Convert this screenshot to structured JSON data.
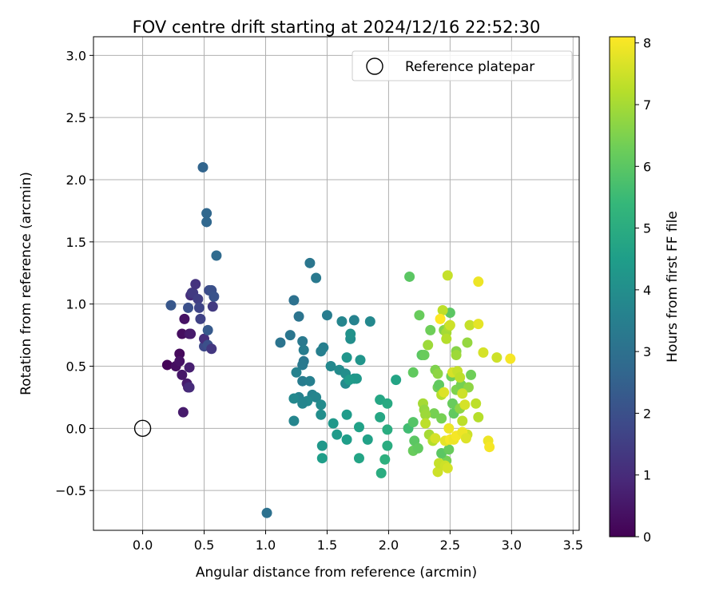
{
  "chart_data": {
    "type": "scatter",
    "title": "FOV centre drift starting at 2024/12/16 22:52:30",
    "xlabel": "Angular distance from reference (arcmin)",
    "ylabel": "Rotation from reference (arcmin)",
    "xlim": [
      -0.4,
      3.55
    ],
    "ylim": [
      -0.82,
      3.15
    ],
    "xticks": [
      "0.0",
      "0.5",
      "1.0",
      "1.5",
      "2.0",
      "2.5",
      "3.0",
      "3.5"
    ],
    "xtick_values": [
      0,
      0.5,
      1,
      1.5,
      2,
      2.5,
      3,
      3.5
    ],
    "yticks": [
      "−0.5",
      "0.0",
      "0.5",
      "1.0",
      "1.5",
      "2.0",
      "2.5",
      "3.0"
    ],
    "ytick_values": [
      -0.5,
      0,
      0.5,
      1,
      1.5,
      2,
      2.5,
      3
    ],
    "grid": true,
    "legend": {
      "position": "top-right",
      "entries": [
        "Reference platepar"
      ]
    },
    "reference_point": {
      "name": "Reference platepar",
      "x": 0.0,
      "y": 0.0,
      "marker": "open-circle"
    },
    "colorbar": {
      "label": "Hours from first FF file",
      "range": [
        0,
        8.1
      ],
      "ticks": [
        "0",
        "1",
        "2",
        "3",
        "4",
        "5",
        "6",
        "7",
        "8"
      ],
      "tick_values": [
        0,
        1,
        2,
        3,
        4,
        5,
        6,
        7,
        8
      ],
      "colormap": "viridis",
      "stops": [
        "#440154",
        "#482878",
        "#3e4989",
        "#31688e",
        "#26828e",
        "#1f9e89",
        "#35b779",
        "#6ece58",
        "#b5de2b",
        "#fde725"
      ]
    },
    "points": [
      [
        0.2,
        0.51,
        0.1
      ],
      [
        0.27,
        0.5,
        0.3
      ],
      [
        0.3,
        0.6,
        0.2
      ],
      [
        0.3,
        0.54,
        0.4
      ],
      [
        0.32,
        0.43,
        0.5
      ],
      [
        0.33,
        0.13,
        0.6
      ],
      [
        0.32,
        0.76,
        0.3
      ],
      [
        0.34,
        0.88,
        0.4
      ],
      [
        0.36,
        0.36,
        0.6
      ],
      [
        0.37,
        0.33,
        0.8
      ],
      [
        0.38,
        0.33,
        1.0
      ],
      [
        0.38,
        0.49,
        0.7
      ],
      [
        0.38,
        0.76,
        0.5
      ],
      [
        0.39,
        0.76,
        0.6
      ],
      [
        0.39,
        1.07,
        1.1
      ],
      [
        0.4,
        1.09,
        1.3
      ],
      [
        0.41,
        1.09,
        1.4
      ],
      [
        0.43,
        1.16,
        1.2
      ],
      [
        0.45,
        1.04,
        1.5
      ],
      [
        0.46,
        0.97,
        1.7
      ],
      [
        0.47,
        0.88,
        1.6
      ],
      [
        0.5,
        0.66,
        1.8
      ],
      [
        0.5,
        0.72,
        1.1
      ],
      [
        0.53,
        0.67,
        2.0
      ],
      [
        0.56,
        0.64,
        1.3
      ],
      [
        0.54,
        1.11,
        1.9
      ],
      [
        0.56,
        1.11,
        2.0
      ],
      [
        0.57,
        0.98,
        1.4
      ],
      [
        0.58,
        1.06,
        2.1
      ],
      [
        0.37,
        0.97,
        2.0
      ],
      [
        0.23,
        0.99,
        2.2
      ],
      [
        0.53,
        0.79,
        2.3
      ],
      [
        0.49,
        2.1,
        2.6
      ],
      [
        0.52,
        1.73,
        2.7
      ],
      [
        0.52,
        1.66,
        2.7
      ],
      [
        0.6,
        1.39,
        2.8
      ],
      [
        1.01,
        -0.68,
        3.0
      ],
      [
        1.12,
        0.69,
        3.1
      ],
      [
        1.2,
        0.75,
        3.2
      ],
      [
        1.23,
        1.03,
        3.0
      ],
      [
        1.27,
        0.9,
        3.1
      ],
      [
        1.3,
        0.7,
        3.3
      ],
      [
        1.31,
        0.63,
        3.4
      ],
      [
        1.31,
        0.54,
        3.2
      ],
      [
        1.3,
        0.51,
        3.3
      ],
      [
        1.36,
        1.33,
        3.2
      ],
      [
        1.41,
        1.21,
        3.3
      ],
      [
        1.5,
        0.91,
        3.4
      ],
      [
        1.45,
        0.62,
        3.5
      ],
      [
        1.47,
        0.65,
        3.5
      ],
      [
        1.25,
        0.45,
        3.6
      ],
      [
        1.3,
        0.38,
        3.4
      ],
      [
        1.36,
        0.38,
        3.5
      ],
      [
        1.38,
        0.27,
        3.6
      ],
      [
        1.41,
        0.25,
        3.7
      ],
      [
        1.34,
        0.22,
        3.8
      ],
      [
        1.27,
        0.25,
        3.6
      ],
      [
        1.3,
        0.2,
        3.7
      ],
      [
        1.23,
        0.06,
        3.7
      ],
      [
        1.23,
        0.24,
        3.8
      ],
      [
        1.45,
        0.19,
        3.9
      ],
      [
        1.45,
        0.11,
        4.0
      ],
      [
        1.53,
        0.5,
        3.8
      ],
      [
        1.62,
        0.86,
        3.7
      ],
      [
        1.72,
        0.87,
        3.6
      ],
      [
        1.85,
        0.86,
        3.8
      ],
      [
        1.6,
        0.47,
        3.9
      ],
      [
        1.65,
        0.44,
        4.0
      ],
      [
        1.65,
        0.36,
        3.9
      ],
      [
        1.66,
        0.57,
        4.2
      ],
      [
        1.69,
        0.72,
        4.0
      ],
      [
        1.69,
        0.76,
        4.1
      ],
      [
        1.72,
        0.4,
        4.1
      ],
      [
        1.74,
        0.4,
        4.3
      ],
      [
        1.77,
        0.55,
        4.2
      ],
      [
        1.68,
        0.39,
        4.4
      ],
      [
        1.55,
        0.04,
        4.3
      ],
      [
        1.58,
        -0.05,
        4.4
      ],
      [
        1.46,
        -0.14,
        4.3
      ],
      [
        1.46,
        -0.24,
        4.5
      ],
      [
        1.66,
        0.11,
        4.4
      ],
      [
        1.66,
        -0.09,
        4.5
      ],
      [
        1.76,
        0.01,
        4.6
      ],
      [
        1.76,
        -0.24,
        4.7
      ],
      [
        1.83,
        -0.09,
        4.6
      ],
      [
        1.93,
        0.23,
        4.8
      ],
      [
        1.93,
        0.09,
        4.8
      ],
      [
        1.99,
        0.2,
        4.9
      ],
      [
        1.99,
        -0.01,
        5.0
      ],
      [
        1.99,
        -0.14,
        5.0
      ],
      [
        1.97,
        -0.25,
        5.1
      ],
      [
        1.94,
        -0.36,
        5.0
      ],
      [
        2.06,
        0.39,
        4.7
      ],
      [
        2.17,
        1.22,
        6.0
      ],
      [
        2.16,
        0.0,
        5.6
      ],
      [
        2.2,
        0.45,
        6.1
      ],
      [
        2.2,
        0.05,
        5.9
      ],
      [
        2.21,
        -0.1,
        6.0
      ],
      [
        2.2,
        -0.18,
        6.2
      ],
      [
        2.24,
        -0.16,
        6.1
      ],
      [
        2.25,
        0.91,
        6.2
      ],
      [
        2.27,
        0.59,
        6.0
      ],
      [
        2.29,
        0.59,
        6.2
      ],
      [
        2.32,
        0.67,
        6.9
      ],
      [
        2.34,
        0.79,
        6.3
      ],
      [
        2.37,
        0.12,
        6.4
      ],
      [
        2.38,
        0.47,
        6.5
      ],
      [
        2.4,
        0.44,
        6.7
      ],
      [
        2.4,
        0.33,
        6.3
      ],
      [
        2.41,
        0.35,
        6.1
      ],
      [
        2.43,
        0.08,
        6.4
      ],
      [
        2.45,
        0.79,
        6.6
      ],
      [
        2.47,
        0.77,
        7.0
      ],
      [
        2.47,
        0.72,
        7.2
      ],
      [
        2.5,
        0.93,
        6.0
      ],
      [
        2.51,
        0.42,
        6.3
      ],
      [
        2.52,
        0.2,
        6.2
      ],
      [
        2.53,
        0.12,
        6.1
      ],
      [
        2.55,
        0.62,
        6.6
      ],
      [
        2.55,
        0.59,
        6.9
      ],
      [
        2.55,
        0.31,
        6.5
      ],
      [
        2.58,
        0.16,
        6.7
      ],
      [
        2.59,
        0.35,
        6.4
      ],
      [
        2.67,
        0.43,
        6.3
      ],
      [
        2.65,
        0.33,
        6.7
      ],
      [
        2.64,
        0.69,
        6.8
      ],
      [
        2.47,
        -0.26,
        6.4
      ],
      [
        2.43,
        -0.2,
        6.0
      ],
      [
        2.49,
        -0.17,
        6.2
      ],
      [
        2.28,
        0.2,
        7.0
      ],
      [
        2.29,
        0.15,
        6.8
      ],
      [
        2.3,
        0.11,
        6.9
      ],
      [
        2.3,
        0.04,
        7.3
      ],
      [
        2.33,
        -0.05,
        7.0
      ],
      [
        2.36,
        -0.1,
        7.2
      ],
      [
        2.38,
        -0.08,
        7.6
      ],
      [
        2.4,
        -0.35,
        7.5
      ],
      [
        2.41,
        -0.28,
        7.4
      ],
      [
        2.43,
        0.27,
        7.2
      ],
      [
        2.44,
        0.95,
        7.3
      ],
      [
        2.48,
        1.23,
        7.4
      ],
      [
        2.49,
        0.82,
        7.1
      ],
      [
        2.5,
        0.83,
        7.5
      ],
      [
        2.52,
        0.45,
        7.6
      ],
      [
        2.56,
        0.46,
        7.4
      ],
      [
        2.58,
        0.41,
        7.3
      ],
      [
        2.6,
        0.28,
        7.5
      ],
      [
        2.6,
        0.06,
        7.3
      ],
      [
        2.62,
        0.19,
        7.6
      ],
      [
        2.64,
        -0.05,
        7.5
      ],
      [
        2.66,
        0.83,
        7.4
      ],
      [
        2.71,
        0.2,
        7.3
      ],
      [
        2.73,
        0.09,
        7.2
      ],
      [
        2.73,
        0.84,
        7.8
      ],
      [
        2.73,
        1.18,
        7.9
      ],
      [
        2.77,
        0.61,
        7.6
      ],
      [
        2.81,
        -0.1,
        7.9
      ],
      [
        2.82,
        -0.15,
        8.0
      ],
      [
        2.88,
        0.57,
        7.5
      ],
      [
        2.99,
        0.56,
        8.0
      ],
      [
        2.42,
        0.88,
        8.1
      ],
      [
        2.45,
        0.29,
        7.7
      ],
      [
        2.46,
        -0.1,
        7.8
      ],
      [
        2.49,
        0.0,
        7.9
      ],
      [
        2.5,
        -0.09,
        8.0
      ],
      [
        2.53,
        -0.09,
        7.9
      ],
      [
        2.55,
        -0.06,
        8.0
      ],
      [
        2.6,
        -0.03,
        7.9
      ],
      [
        2.63,
        -0.08,
        7.7
      ],
      [
        2.46,
        -0.3,
        7.5
      ],
      [
        2.48,
        -0.32,
        7.6
      ]
    ]
  }
}
